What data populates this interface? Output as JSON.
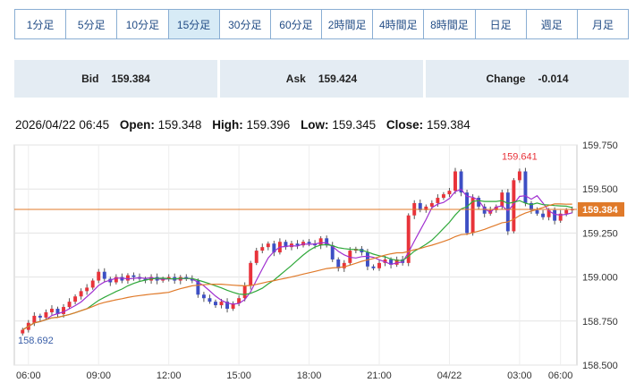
{
  "tabs": [
    {
      "label": "1分足",
      "active": false
    },
    {
      "label": "5分足",
      "active": false
    },
    {
      "label": "10分足",
      "active": false
    },
    {
      "label": "15分足",
      "active": true
    },
    {
      "label": "30分足",
      "active": false
    },
    {
      "label": "60分足",
      "active": false
    },
    {
      "label": "2時間足",
      "active": false
    },
    {
      "label": "4時間足",
      "active": false
    },
    {
      "label": "8時間足",
      "active": false
    },
    {
      "label": "日足",
      "active": false
    },
    {
      "label": "週足",
      "active": false
    },
    {
      "label": "月足",
      "active": false
    }
  ],
  "quote": {
    "bid_label": "Bid",
    "bid": "159.384",
    "ask_label": "Ask",
    "ask": "159.424",
    "change_label": "Change",
    "change": "-0.014"
  },
  "ohlc": {
    "datetime": "2026/04/22 06:45",
    "open_label": "Open:",
    "open": "159.348",
    "high_label": "High:",
    "high": "159.396",
    "low_label": "Low:",
    "low": "159.345",
    "close_label": "Close:",
    "close": "159.384"
  },
  "chart_data": {
    "type": "candlestick",
    "interval": "15分足",
    "ylim": [
      158.5,
      159.75
    ],
    "y_ticks": [
      "159.750",
      "159.500",
      "159.250",
      "159.000",
      "158.750",
      "158.500"
    ],
    "x_ticks": [
      "06:00",
      "09:00",
      "12:00",
      "15:00",
      "18:00",
      "21:00",
      "04/22",
      "03:00",
      "06:00"
    ],
    "current_price": "159.384",
    "max_label": "159.641",
    "min_label": "158.692",
    "colors": {
      "up": "#e8333a",
      "down": "#3d4fc4",
      "ma_fast": "#a030d0",
      "ma_mid": "#2fa83a",
      "ma_slow": "#e07a2a",
      "price_line": "#e07a2a"
    },
    "closes": [
      158.7,
      158.74,
      158.78,
      158.77,
      158.8,
      158.82,
      158.79,
      158.83,
      158.86,
      158.89,
      158.92,
      158.94,
      158.98,
      159.03,
      158.99,
      158.97,
      159.0,
      158.98,
      159.01,
      159.0,
      158.99,
      158.98,
      159.0,
      158.98,
      158.99,
      159.0,
      158.98,
      159.0,
      158.99,
      158.98,
      158.9,
      158.88,
      158.86,
      158.84,
      158.86,
      158.82,
      158.85,
      158.88,
      158.95,
      159.08,
      159.15,
      159.17,
      159.19,
      159.14,
      159.2,
      159.17,
      159.19,
      159.18,
      159.2,
      159.19,
      159.18,
      159.22,
      159.18,
      159.1,
      159.05,
      159.08,
      159.15,
      159.16,
      159.14,
      159.06,
      159.05,
      159.08,
      159.1,
      159.07,
      159.1,
      159.08,
      159.35,
      159.42,
      159.38,
      159.4,
      159.42,
      159.45,
      159.47,
      159.49,
      159.6,
      159.48,
      159.25,
      159.45,
      159.4,
      159.36,
      159.38,
      159.4,
      159.48,
      159.26,
      159.55,
      159.6,
      159.42,
      159.38,
      159.36,
      159.34,
      159.38,
      159.32,
      159.36,
      159.38,
      159.384
    ],
    "ma_fast_period": 5,
    "ma_mid_period": 12,
    "ma_slow_period": 26
  }
}
